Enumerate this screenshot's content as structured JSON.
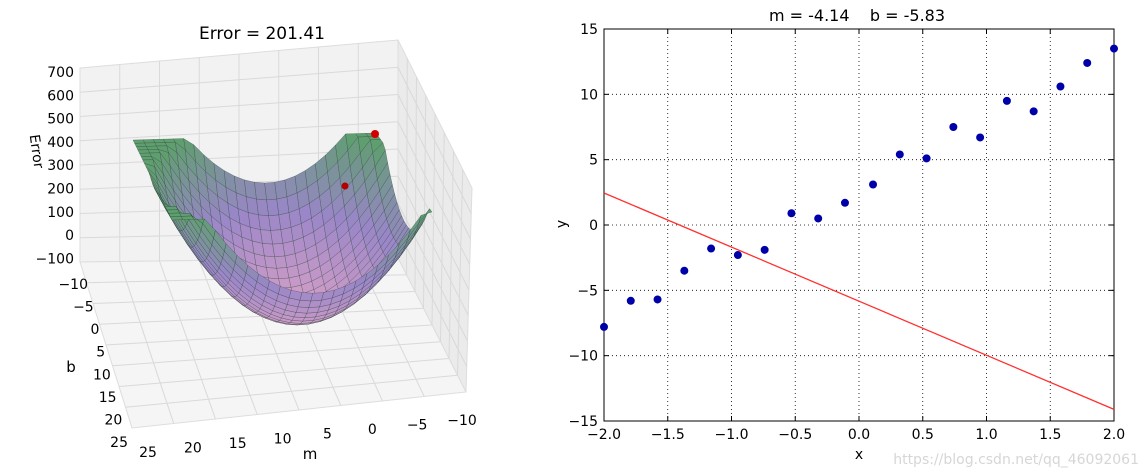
{
  "chart_data": [
    {
      "type": "surface3d",
      "title": "Error = 201.41",
      "xlabel": "m",
      "ylabel": "b",
      "zlabel": "Error",
      "m_ticks": [
        "25",
        "20",
        "15",
        "10",
        "5",
        "0",
        "−5",
        "−10"
      ],
      "b_ticks": [
        "−10",
        "−5",
        "0",
        "5",
        "10",
        "15",
        "20",
        "25"
      ],
      "z_ticks": [
        "700",
        "600",
        "500",
        "400",
        "300",
        "200",
        "100",
        "0",
        "−100"
      ],
      "grid": true,
      "surface_colors": [
        "#5f9e6f",
        "#9a86c8",
        "#d7a0c8"
      ],
      "markers": [
        {
          "label": "start",
          "color": "#d40000"
        },
        {
          "label": "current",
          "color": "#b00000"
        }
      ]
    },
    {
      "type": "scatter",
      "title": "m = -4.14    b = -5.83",
      "xlabel": "x",
      "ylabel": "y",
      "xlim": [
        -2.0,
        2.0
      ],
      "ylim": [
        -15,
        15
      ],
      "x_ticks": [
        "−2.0",
        "−1.5",
        "−1.0",
        "−0.5",
        "0.0",
        "0.5",
        "1.0",
        "1.5",
        "2.0"
      ],
      "y_ticks": [
        "15",
        "10",
        "5",
        "0",
        "−5",
        "−10",
        "−15"
      ],
      "grid": true,
      "points_color": "#0000a8",
      "points": [
        {
          "x": -2.0,
          "y": -7.8
        },
        {
          "x": -1.79,
          "y": -5.8
        },
        {
          "x": -1.58,
          "y": -5.7
        },
        {
          "x": -1.37,
          "y": -3.5
        },
        {
          "x": -1.16,
          "y": -1.8
        },
        {
          "x": -0.95,
          "y": -2.3
        },
        {
          "x": -0.74,
          "y": -1.9
        },
        {
          "x": -0.53,
          "y": 0.9
        },
        {
          "x": -0.32,
          "y": 0.5
        },
        {
          "x": -0.11,
          "y": 1.7
        },
        {
          "x": 0.11,
          "y": 3.1
        },
        {
          "x": 0.32,
          "y": 5.4
        },
        {
          "x": 0.53,
          "y": 5.1
        },
        {
          "x": 0.74,
          "y": 7.5
        },
        {
          "x": 0.95,
          "y": 6.7
        },
        {
          "x": 1.16,
          "y": 9.5
        },
        {
          "x": 1.37,
          "y": 8.7
        },
        {
          "x": 1.58,
          "y": 10.6
        },
        {
          "x": 1.79,
          "y": 12.4
        },
        {
          "x": 2.0,
          "y": 13.5
        }
      ],
      "line": {
        "m": -4.14,
        "b": -5.83,
        "color": "#ff3030"
      }
    }
  ],
  "watermark": "https://blog.csdn.net/qq_46092061"
}
